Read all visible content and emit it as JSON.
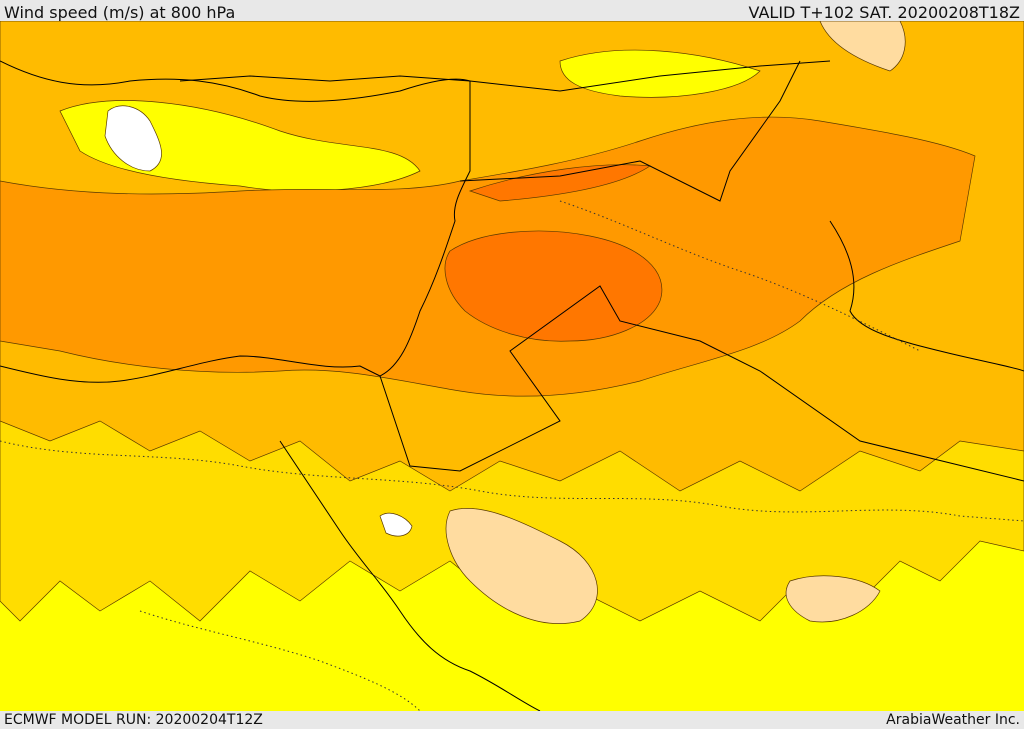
{
  "header": {
    "title": "Wind speed (m/s) at 800 hPa",
    "valid": "VALID T+102 SAT. 20200208T18Z"
  },
  "footer": {
    "model_run": "ECMWF MODEL RUN: 20200204T12Z",
    "brand": "ArabiaWeather Inc."
  },
  "colors": {
    "white": "#ffffff",
    "light_tan": "#ffdca0",
    "yellow": "#ffff00",
    "yellow_orange": "#ffdd00",
    "orange_light": "#ffbb00",
    "orange": "#ff9900",
    "orange_dark": "#ff7700"
  }
}
